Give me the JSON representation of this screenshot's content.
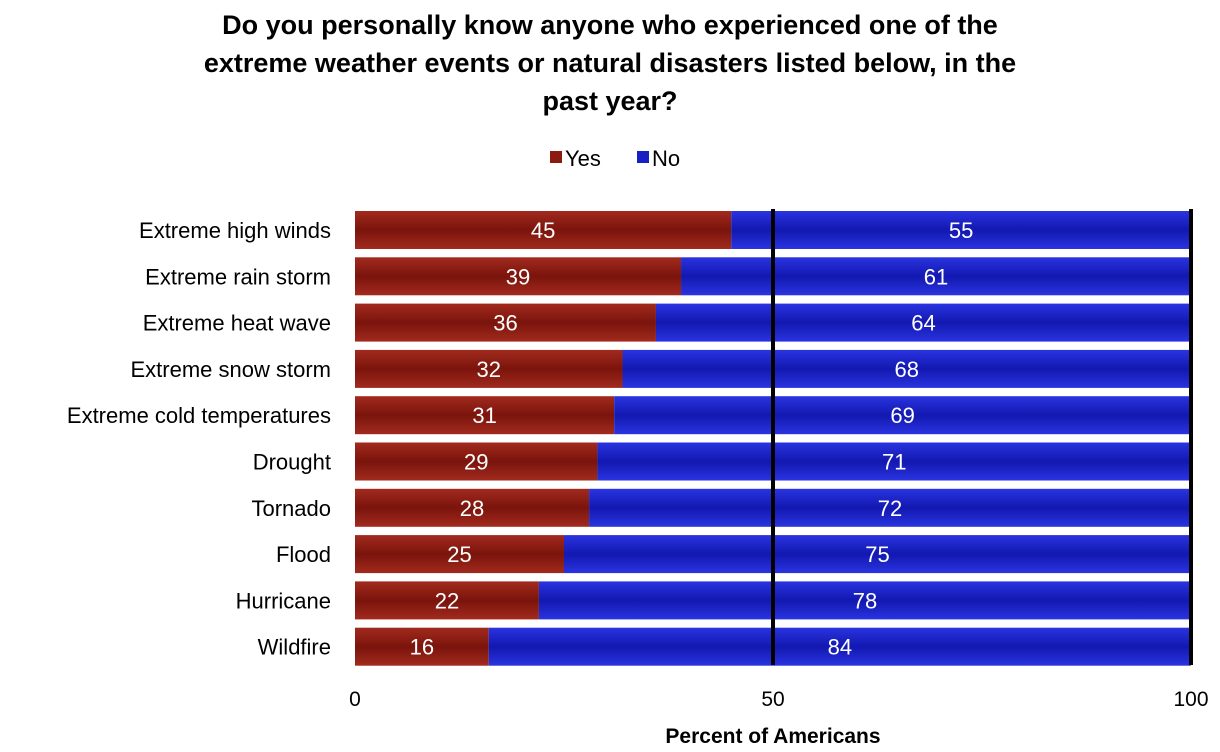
{
  "chart_data": {
    "type": "bar",
    "orientation": "horizontal",
    "stacked": true,
    "title_lines": [
      "Do you personally know anyone who experienced one of the",
      "extreme weather events or natural disasters listed below, in the",
      "past year?"
    ],
    "categories": [
      "Extreme high winds",
      "Extreme rain storm",
      "Extreme heat wave",
      "Extreme snow storm",
      "Extreme cold temperatures",
      "Drought",
      "Tornado",
      "Flood",
      "Hurricane",
      "Wildfire"
    ],
    "series": [
      {
        "name": "Yes",
        "color": "#8b1a10",
        "values": [
          45,
          39,
          36,
          32,
          31,
          29,
          28,
          25,
          22,
          16
        ]
      },
      {
        "name": "No",
        "color": "#1a1fc4",
        "values": [
          55,
          61,
          64,
          68,
          69,
          71,
          72,
          75,
          78,
          84
        ]
      }
    ],
    "xlabel": "Percent of Americans",
    "xlim": [
      0,
      100
    ],
    "xticks": [
      "0",
      "50",
      "100"
    ],
    "legend_position": "top"
  }
}
